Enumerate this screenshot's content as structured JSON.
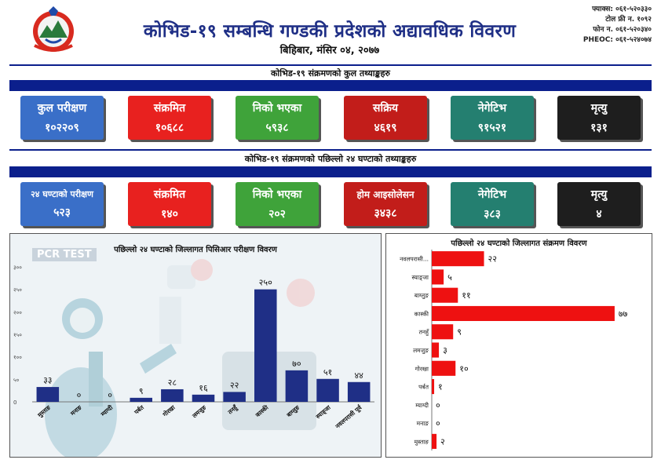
{
  "header": {
    "title": "कोभिड-१९ सम्बन्धि गण्डकी प्रदेशको अद्यावधिक विवरण",
    "date": "बिहिबार, मंसिर ०४, २०७७",
    "contacts": [
      "फ्याक्स: ०६१-५२०३३०",
      "टोल फ्री न. १०९२",
      "फोन न. ०६१-५२०३४०",
      "PHEOC: ०६१-५२४०७४"
    ]
  },
  "sections": {
    "total_label": "कोभिड-१९ संक्रमणको कुल तथ्याङ्कहरु",
    "last24_label": "कोभिड-१९ संक्रमणको पछिल्लो २४ घण्टाको तथ्याङ्कहरु"
  },
  "total_cards": [
    {
      "label": "कुल परीक्षण",
      "value": "१०२२०९",
      "color": "#3a6fc8"
    },
    {
      "label": "संक्रमित",
      "value": "१०६८८",
      "color": "#e8211f"
    },
    {
      "label": "निको भएका",
      "value": "५९३८",
      "color": "#3fa33a"
    },
    {
      "label": "सक्रिय",
      "value": "४६१९",
      "color": "#c21d1a"
    },
    {
      "label": "नेगेटिभ",
      "value": "९१५२१",
      "color": "#247f70"
    },
    {
      "label": "मृत्यु",
      "value": "१३१",
      "color": "#1e1e1e"
    }
  ],
  "last24_cards": [
    {
      "label": "२४ घण्टाको परीक्षण",
      "value": "५२३",
      "color": "#3a6fc8"
    },
    {
      "label": "संक्रमित",
      "value": "१४०",
      "color": "#e8211f"
    },
    {
      "label": "निको भएका",
      "value": "२०२",
      "color": "#3fa33a"
    },
    {
      "label": "होम आइसोलेसन",
      "value": "३४३८",
      "color": "#c21d1a"
    },
    {
      "label": "नेगेटिभ",
      "value": "३८३",
      "color": "#247f70"
    },
    {
      "label": "मृत्यु",
      "value": "४",
      "color": "#1e1e1e"
    }
  ],
  "pcr_tag": "PCR TEST",
  "chart_data": [
    {
      "type": "bar",
      "title": "पछिल्लो २४ घण्टाको जिल्लागत पिसिआर परीक्षण विवरण",
      "categories": [
        "मुस्ताङ",
        "मनाङ",
        "म्याग्दी",
        "पर्बत",
        "गोरखा",
        "लमजुङ",
        "तनहुँ",
        "कास्की",
        "बाग्लुङ",
        "स्याङ्जा",
        "नवलपरासी पूर्व"
      ],
      "values": [
        33,
        0,
        0,
        9,
        28,
        16,
        22,
        250,
        70,
        51,
        44
      ],
      "value_labels": [
        "३३",
        "०",
        "०",
        "९",
        "२८",
        "१६",
        "२२",
        "२५०",
        "७०",
        "५१",
        "४४"
      ],
      "yticks": [
        "0",
        "५०",
        "१००",
        "१५०",
        "२००",
        "२५०",
        "३००"
      ],
      "ylim": [
        0,
        300
      ],
      "color": "#1f2f86"
    },
    {
      "type": "bar",
      "orientation": "horizontal",
      "title": "पछिल्लो २४ घण्टाको जिल्लागत संक्रमण विवरण",
      "categories": [
        "नवलपरासी...",
        "स्याङ्जा",
        "बाग्लुङ",
        "कास्की",
        "तनहुँ",
        "लमजुङ",
        "गोरखा",
        "पर्बत",
        "म्याग्दी",
        "मनाङ",
        "मुस्ताङ"
      ],
      "values": [
        22,
        5,
        11,
        77,
        9,
        3,
        10,
        1,
        0,
        0,
        2
      ],
      "value_labels": [
        "२२",
        "५",
        "११",
        "७७",
        "९",
        "३",
        "१०",
        "१",
        "०",
        "०",
        "२"
      ],
      "xlim": [
        0,
        80
      ],
      "color": "#ee1111"
    }
  ]
}
